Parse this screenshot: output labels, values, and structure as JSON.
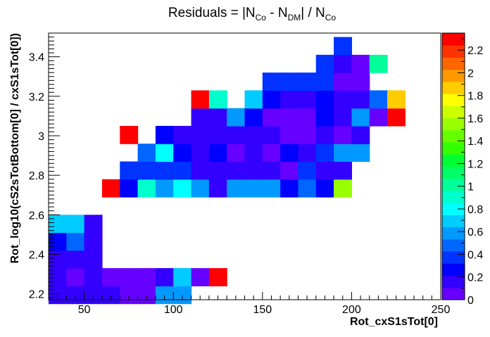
{
  "chart_data": {
    "type": "heatmap",
    "title": "Residuals = |N_Co - N_DM| / N_Co",
    "title_parts": {
      "prefix": "Residuals = |N",
      "sub1": "Co",
      "mid": " - N",
      "sub2": "DM",
      "mid2": "| / N",
      "sub3": "Co"
    },
    "xlabel": "Rot_cxS1sTot[0]",
    "ylabel": "Rot_log10(cS2sTotBottom[0] / cxS1sTot[0])",
    "xlim": [
      30,
      250
    ],
    "ylim": [
      2.17,
      3.52
    ],
    "x_ticks": [
      50,
      100,
      150,
      200,
      250
    ],
    "x_tick_labels": [
      "50",
      "100",
      "150",
      "200",
      "250"
    ],
    "y_ticks": [
      2.2,
      2.4,
      2.6,
      2.8,
      3.0,
      3.2,
      3.4
    ],
    "y_tick_labels": [
      "2.2",
      "2.4",
      "2.6",
      "2.8",
      "3",
      "3.2",
      "3.4"
    ],
    "bin_width_x": 10,
    "bin_height_y": 0.09,
    "colorbar": {
      "min": 0,
      "max": 2.35,
      "ticks": [
        0,
        0.2,
        0.4,
        0.6,
        0.8,
        1,
        1.2,
        1.4,
        1.6,
        1.8,
        2,
        2.2
      ],
      "tick_labels": [
        "0",
        "0.2",
        "0.4",
        "0.6",
        "0.8",
        "1",
        "1.2",
        "1.4",
        "1.6",
        "1.8",
        "2",
        "2.2"
      ],
      "colors": [
        "#6600ff",
        "#3300ff",
        "#0000ff",
        "#0033ff",
        "#0066ff",
        "#0099ff",
        "#00ccff",
        "#00ffff",
        "#00ffcc",
        "#00ff99",
        "#00ff66",
        "#00ff33",
        "#33ff00",
        "#66ff00",
        "#99ff00",
        "#ccff00",
        "#ffff00",
        "#ffcc00",
        "#ff9900",
        "#ff6600",
        "#ff3300",
        "#ff0000"
      ]
    },
    "cells": [
      {
        "x": 35,
        "y": 2.195,
        "v": 0.15
      },
      {
        "x": 45,
        "y": 2.195,
        "v": 0.15
      },
      {
        "x": 55,
        "y": 2.195,
        "v": 0.15
      },
      {
        "x": 65,
        "y": 2.195,
        "v": 0.2
      },
      {
        "x": 75,
        "y": 2.195,
        "v": 0.1
      },
      {
        "x": 85,
        "y": 2.195,
        "v": 0.1
      },
      {
        "x": 95,
        "y": 2.195,
        "v": 0.55
      },
      {
        "x": 105,
        "y": 2.195,
        "v": 0.55
      },
      {
        "x": 35,
        "y": 2.285,
        "v": 0.15
      },
      {
        "x": 45,
        "y": 2.285,
        "v": 0.1
      },
      {
        "x": 55,
        "y": 2.285,
        "v": 0.15
      },
      {
        "x": 65,
        "y": 2.285,
        "v": 0.05
      },
      {
        "x": 75,
        "y": 2.285,
        "v": 0.05
      },
      {
        "x": 85,
        "y": 2.285,
        "v": 0.1
      },
      {
        "x": 95,
        "y": 2.285,
        "v": 0.2
      },
      {
        "x": 105,
        "y": 2.285,
        "v": 0.65
      },
      {
        "x": 115,
        "y": 2.285,
        "v": 0.1
      },
      {
        "x": 125,
        "y": 2.285,
        "v": 2.3
      },
      {
        "x": 35,
        "y": 2.375,
        "v": 0.15
      },
      {
        "x": 45,
        "y": 2.375,
        "v": 0.15
      },
      {
        "x": 55,
        "y": 2.375,
        "v": 0.15
      },
      {
        "x": 35,
        "y": 2.465,
        "v": 0.3
      },
      {
        "x": 45,
        "y": 2.465,
        "v": 0.5
      },
      {
        "x": 55,
        "y": 2.465,
        "v": 0.2
      },
      {
        "x": 35,
        "y": 2.555,
        "v": 0.7
      },
      {
        "x": 45,
        "y": 2.555,
        "v": 0.7
      },
      {
        "x": 55,
        "y": 2.555,
        "v": 0.2
      },
      {
        "x": 65,
        "y": 2.735,
        "v": 2.3
      },
      {
        "x": 75,
        "y": 2.735,
        "v": 0.25
      },
      {
        "x": 85,
        "y": 2.735,
        "v": 0.9
      },
      {
        "x": 95,
        "y": 2.735,
        "v": 0.55
      },
      {
        "x": 105,
        "y": 2.735,
        "v": 0.8
      },
      {
        "x": 115,
        "y": 2.735,
        "v": 0.55
      },
      {
        "x": 125,
        "y": 2.735,
        "v": 0.2
      },
      {
        "x": 135,
        "y": 2.735,
        "v": 0.6
      },
      {
        "x": 145,
        "y": 2.735,
        "v": 0.6
      },
      {
        "x": 155,
        "y": 2.735,
        "v": 0.6
      },
      {
        "x": 165,
        "y": 2.735,
        "v": 0.25
      },
      {
        "x": 175,
        "y": 2.735,
        "v": 0.45
      },
      {
        "x": 185,
        "y": 2.735,
        "v": 0.25
      },
      {
        "x": 195,
        "y": 2.735,
        "v": 1.55
      },
      {
        "x": 75,
        "y": 2.825,
        "v": 0.4
      },
      {
        "x": 85,
        "y": 2.825,
        "v": 0.4
      },
      {
        "x": 95,
        "y": 2.825,
        "v": 0.4
      },
      {
        "x": 105,
        "y": 2.825,
        "v": 0.35
      },
      {
        "x": 115,
        "y": 2.825,
        "v": 0.15
      },
      {
        "x": 125,
        "y": 2.825,
        "v": 0.15
      },
      {
        "x": 135,
        "y": 2.825,
        "v": 0.15
      },
      {
        "x": 145,
        "y": 2.825,
        "v": 0.15
      },
      {
        "x": 155,
        "y": 2.825,
        "v": 0.15
      },
      {
        "x": 165,
        "y": 2.825,
        "v": 0.05
      },
      {
        "x": 175,
        "y": 2.825,
        "v": 0.4
      },
      {
        "x": 185,
        "y": 2.825,
        "v": 0.15
      },
      {
        "x": 195,
        "y": 2.825,
        "v": 0.15
      },
      {
        "x": 85,
        "y": 2.915,
        "v": 0.5
      },
      {
        "x": 95,
        "y": 2.915,
        "v": 0.75
      },
      {
        "x": 105,
        "y": 2.915,
        "v": 0.3
      },
      {
        "x": 115,
        "y": 2.915,
        "v": 0.15
      },
      {
        "x": 125,
        "y": 2.915,
        "v": 0.25
      },
      {
        "x": 135,
        "y": 2.915,
        "v": 0.05
      },
      {
        "x": 145,
        "y": 2.915,
        "v": 0.2
      },
      {
        "x": 155,
        "y": 2.915,
        "v": 0.1
      },
      {
        "x": 165,
        "y": 2.915,
        "v": 0.3
      },
      {
        "x": 175,
        "y": 2.915,
        "v": 0.15
      },
      {
        "x": 185,
        "y": 2.915,
        "v": 0.35
      },
      {
        "x": 195,
        "y": 2.915,
        "v": 0.55
      },
      {
        "x": 205,
        "y": 2.915,
        "v": 0.55
      },
      {
        "x": 75,
        "y": 3.005,
        "v": 2.3
      },
      {
        "x": 95,
        "y": 3.005,
        "v": 0.3
      },
      {
        "x": 105,
        "y": 3.005,
        "v": 0.2
      },
      {
        "x": 115,
        "y": 3.005,
        "v": 0.2
      },
      {
        "x": 125,
        "y": 3.005,
        "v": 0.2
      },
      {
        "x": 135,
        "y": 3.005,
        "v": 0.15
      },
      {
        "x": 145,
        "y": 3.005,
        "v": 0.15
      },
      {
        "x": 155,
        "y": 3.005,
        "v": 0.15
      },
      {
        "x": 165,
        "y": 3.005,
        "v": 0.05
      },
      {
        "x": 175,
        "y": 3.005,
        "v": 0.05
      },
      {
        "x": 185,
        "y": 3.005,
        "v": 0.15
      },
      {
        "x": 195,
        "y": 3.005,
        "v": 0.05
      },
      {
        "x": 205,
        "y": 3.005,
        "v": 0.15
      },
      {
        "x": 115,
        "y": 3.095,
        "v": 0.2
      },
      {
        "x": 125,
        "y": 3.095,
        "v": 0.2
      },
      {
        "x": 135,
        "y": 3.095,
        "v": 0.55
      },
      {
        "x": 145,
        "y": 3.095,
        "v": 0.3
      },
      {
        "x": 155,
        "y": 3.095,
        "v": 0.1
      },
      {
        "x": 165,
        "y": 3.095,
        "v": 0.05
      },
      {
        "x": 175,
        "y": 3.095,
        "v": 0.05
      },
      {
        "x": 185,
        "y": 3.095,
        "v": 0.3
      },
      {
        "x": 195,
        "y": 3.095,
        "v": 0.15
      },
      {
        "x": 205,
        "y": 3.095,
        "v": 0.55
      },
      {
        "x": 215,
        "y": 3.095,
        "v": 0.05
      },
      {
        "x": 225,
        "y": 3.095,
        "v": 2.3
      },
      {
        "x": 115,
        "y": 3.185,
        "v": 2.3
      },
      {
        "x": 125,
        "y": 3.185,
        "v": 0.95
      },
      {
        "x": 145,
        "y": 3.185,
        "v": 0.7
      },
      {
        "x": 155,
        "y": 3.185,
        "v": 0.3
      },
      {
        "x": 165,
        "y": 3.185,
        "v": 0.15
      },
      {
        "x": 175,
        "y": 3.185,
        "v": 0.15
      },
      {
        "x": 185,
        "y": 3.185,
        "v": 0.25
      },
      {
        "x": 195,
        "y": 3.185,
        "v": 0.2
      },
      {
        "x": 205,
        "y": 3.185,
        "v": 0.15
      },
      {
        "x": 215,
        "y": 3.185,
        "v": 0.45
      },
      {
        "x": 225,
        "y": 3.185,
        "v": 1.85
      },
      {
        "x": 155,
        "y": 3.275,
        "v": 0.35
      },
      {
        "x": 165,
        "y": 3.275,
        "v": 0.35
      },
      {
        "x": 175,
        "y": 3.275,
        "v": 0.35
      },
      {
        "x": 185,
        "y": 3.275,
        "v": 0.35
      },
      {
        "x": 195,
        "y": 3.275,
        "v": 0.05
      },
      {
        "x": 205,
        "y": 3.275,
        "v": 0.05
      },
      {
        "x": 185,
        "y": 3.365,
        "v": 0.35
      },
      {
        "x": 195,
        "y": 3.365,
        "v": 0.2
      },
      {
        "x": 205,
        "y": 3.365,
        "v": 0.05
      },
      {
        "x": 215,
        "y": 3.365,
        "v": 1.0
      },
      {
        "x": 195,
        "y": 3.455,
        "v": 0.35
      }
    ]
  }
}
